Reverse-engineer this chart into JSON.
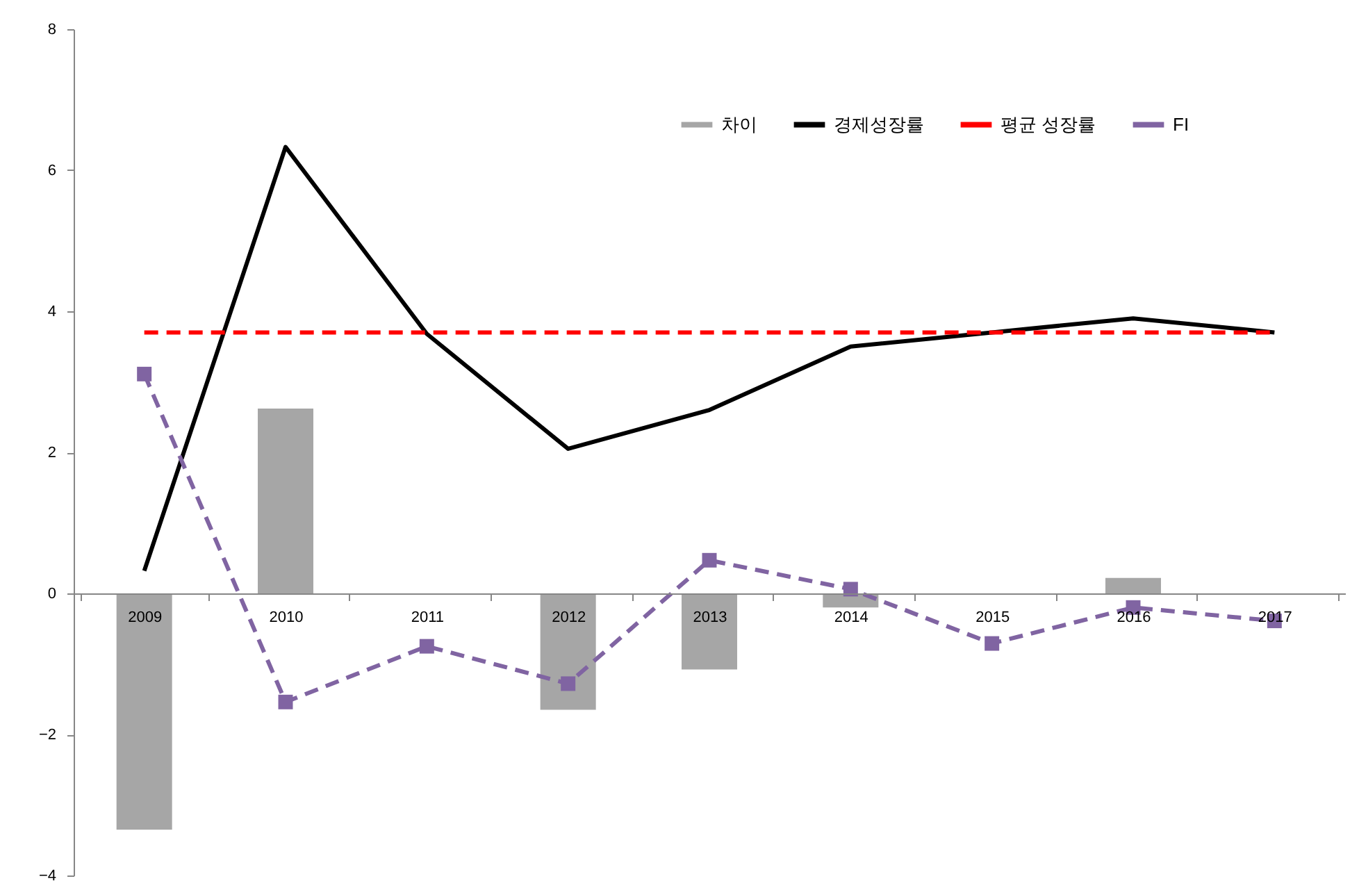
{
  "chart_data": {
    "type": "bar",
    "categories": [
      "2009",
      "2010",
      "2011",
      "2012",
      "2013",
      "2014",
      "2015",
      "2016",
      "2017"
    ],
    "series": [
      {
        "name": "차이",
        "color": "#a6a6a6",
        "values": [
          -3.35,
          2.62,
          0,
          -1.65,
          -1.08,
          -0.2,
          0,
          0.22,
          0
        ]
      },
      {
        "name": "경제성장률",
        "type": "line",
        "color": "#000000",
        "line_style": "solid",
        "values": [
          0.32,
          6.33,
          3.68,
          2.05,
          2.6,
          3.5,
          3.7,
          3.9,
          3.7
        ]
      },
      {
        "name": "평균 성장률",
        "type": "line",
        "color": "#ff0000",
        "line_style": "dashed",
        "values": [
          3.7,
          3.7,
          3.7,
          3.7,
          3.7,
          3.7,
          3.7,
          3.7,
          3.7
        ]
      },
      {
        "name": "FI",
        "type": "line",
        "color": "#8064a2",
        "line_style": "dashed",
        "marker": "square",
        "values": [
          3.11,
          -1.54,
          -0.75,
          -1.28,
          0.47,
          0.06,
          -0.71,
          -0.2,
          -0.39
        ]
      }
    ],
    "ylim": [
      -4,
      8
    ],
    "yticks": [
      -4,
      -2,
      0,
      2,
      4,
      6,
      8
    ],
    "grid": false,
    "legend": "top right"
  }
}
